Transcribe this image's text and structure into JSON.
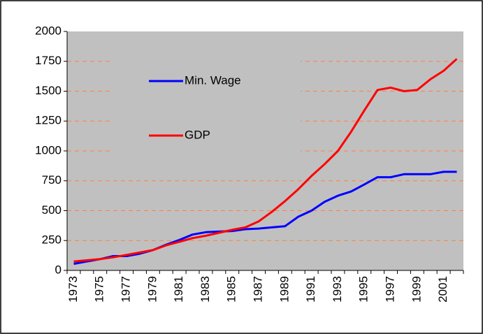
{
  "chart_data": {
    "type": "line",
    "categories": [
      "1973",
      null,
      "1975",
      null,
      "1977",
      null,
      "1979",
      null,
      "1981",
      null,
      "1983",
      null,
      "1985",
      null,
      "1987",
      null,
      "1989",
      null,
      "1991",
      null,
      "1993",
      null,
      "1995",
      null,
      "1997",
      null,
      "1999",
      null,
      "2001",
      null
    ],
    "series": [
      {
        "name": "Min. Wage",
        "color": "#0000ff",
        "values": [
          55,
          75,
          95,
          120,
          120,
          140,
          170,
          215,
          255,
          300,
          320,
          325,
          330,
          345,
          350,
          360,
          370,
          450,
          500,
          575,
          625,
          660,
          720,
          780,
          780,
          805,
          805,
          805,
          825,
          825
        ]
      },
      {
        "name": "GDP",
        "color": "#ff0000",
        "values": [
          75,
          85,
          95,
          110,
          130,
          150,
          170,
          210,
          240,
          270,
          290,
          315,
          340,
          360,
          410,
          490,
          580,
          680,
          790,
          890,
          1000,
          1160,
          1340,
          1510,
          1530,
          1500,
          1510,
          1600,
          1670,
          1770
        ]
      }
    ],
    "ylim": [
      0,
      2000
    ],
    "yticks": [
      0,
      250,
      500,
      750,
      1000,
      1250,
      1500,
      1750,
      2000
    ],
    "grid": true,
    "legend": "upper left"
  }
}
